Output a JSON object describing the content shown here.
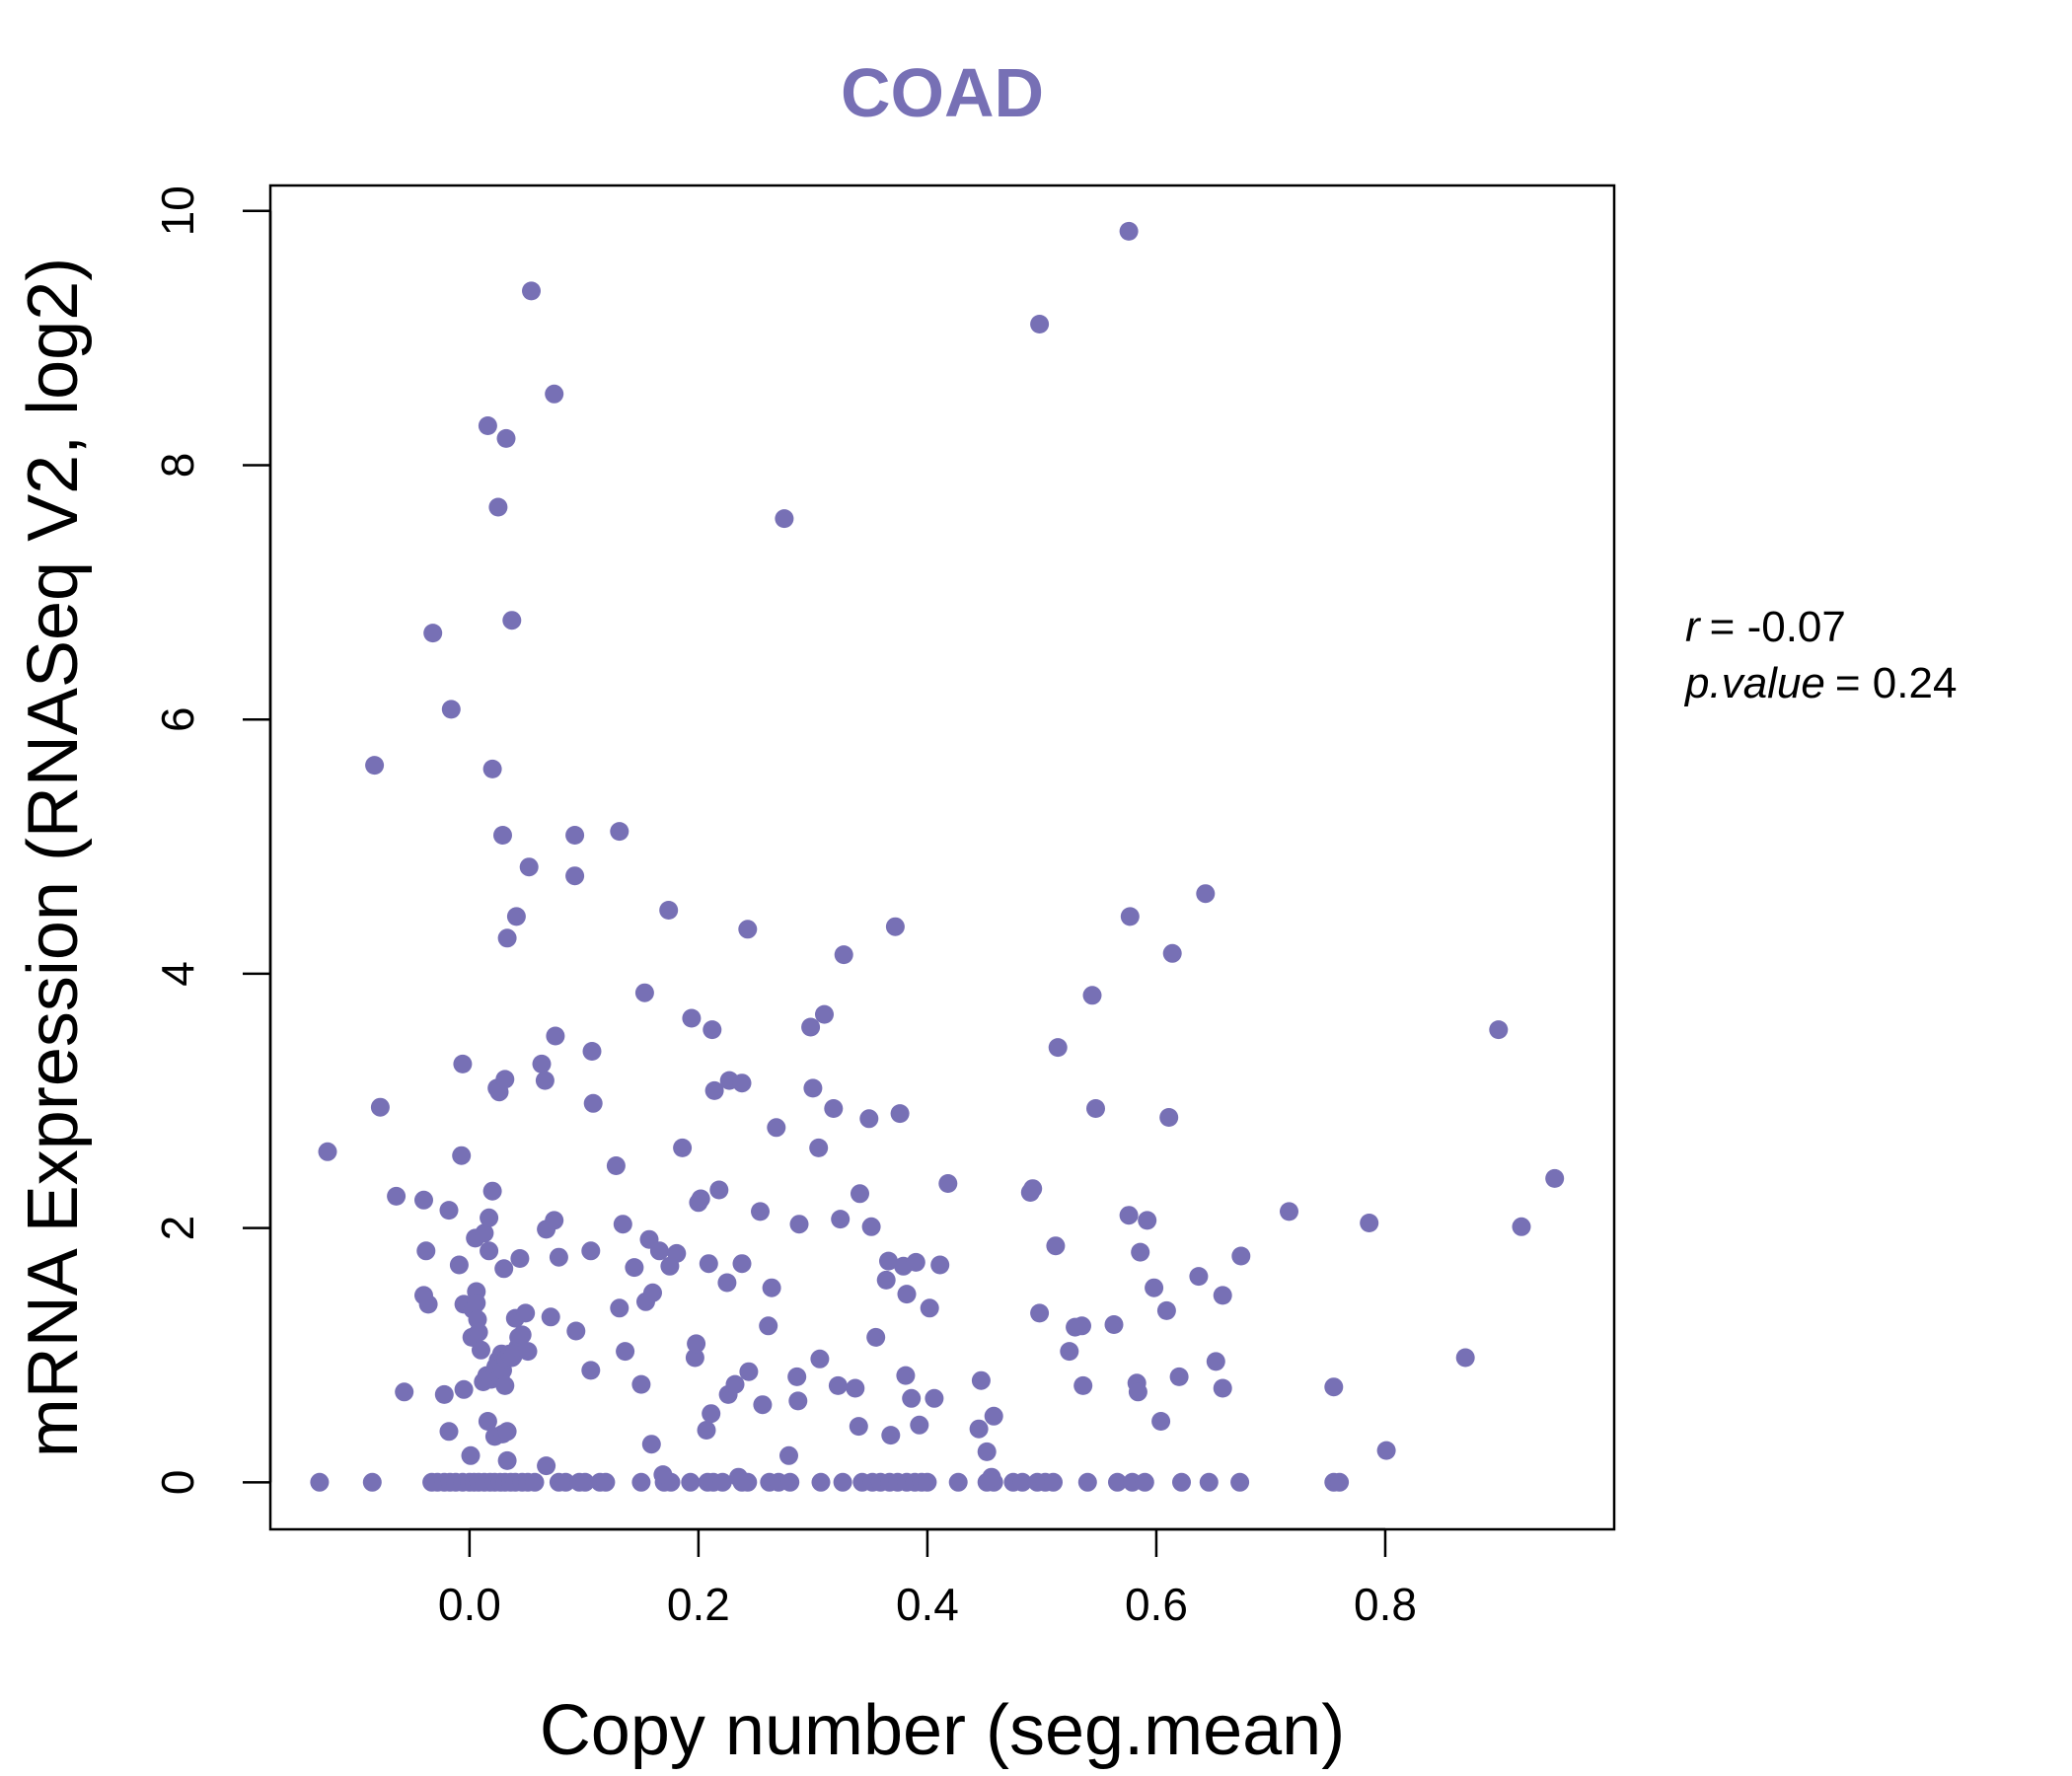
{
  "chart_data": {
    "type": "scatter",
    "title": "COAD",
    "xlabel": "Copy number (seg.mean)",
    "ylabel": "mRNA Expression (RNASeq V2, log2)",
    "xlim": [
      -0.174,
      1.0
    ],
    "ylim": [
      -0.37,
      10.2
    ],
    "xticks": [
      0.0,
      0.2,
      0.4,
      0.6,
      0.8
    ],
    "xtick_labels": [
      "0.0",
      "0.2",
      "0.4",
      "0.6",
      "0.8"
    ],
    "yticks": [
      0,
      2,
      4,
      6,
      8,
      10
    ],
    "ytick_labels": [
      "0",
      "2",
      "4",
      "6",
      "8",
      "10"
    ],
    "grid": false,
    "point_color": "#7770B5",
    "stats": {
      "r_label": "r",
      "r_value": "= -0.07",
      "p_label": "p.value",
      "p_value": "= 0.24"
    },
    "points": [
      [
        -0.131,
        0
      ],
      [
        -0.085,
        0
      ],
      [
        -0.033,
        0
      ],
      [
        -0.028,
        0
      ],
      [
        -0.022,
        0
      ],
      [
        -0.017,
        0
      ],
      [
        -0.012,
        0
      ],
      [
        -0.006,
        0
      ],
      [
        0.0,
        0
      ],
      [
        0.004,
        0
      ],
      [
        0.008,
        0
      ],
      [
        0.013,
        0
      ],
      [
        0.018,
        0
      ],
      [
        0.022,
        0
      ],
      [
        0.027,
        0
      ],
      [
        0.031,
        0
      ],
      [
        0.036,
        0
      ],
      [
        0.04,
        0
      ],
      [
        0.046,
        0
      ],
      [
        0.051,
        0
      ],
      [
        0.057,
        0
      ],
      [
        0.078,
        0
      ],
      [
        0.084,
        0
      ],
      [
        0.096,
        0
      ],
      [
        0.101,
        0
      ],
      [
        0.114,
        0
      ],
      [
        0.119,
        0
      ],
      [
        0.15,
        0
      ],
      [
        0.17,
        0
      ],
      [
        0.176,
        0
      ],
      [
        0.193,
        0
      ],
      [
        0.208,
        0
      ],
      [
        0.213,
        0
      ],
      [
        0.221,
        0
      ],
      [
        0.238,
        0
      ],
      [
        0.243,
        0
      ],
      [
        0.262,
        0
      ],
      [
        0.27,
        0
      ],
      [
        0.28,
        0
      ],
      [
        0.307,
        0
      ],
      [
        0.326,
        0
      ],
      [
        0.343,
        0
      ],
      [
        0.352,
        0
      ],
      [
        0.359,
        0
      ],
      [
        0.367,
        0
      ],
      [
        0.374,
        0
      ],
      [
        0.382,
        0
      ],
      [
        0.389,
        0
      ],
      [
        0.395,
        0
      ],
      [
        0.4,
        0
      ],
      [
        0.427,
        0
      ],
      [
        0.452,
        0
      ],
      [
        0.458,
        0
      ],
      [
        0.475,
        0
      ],
      [
        0.483,
        0
      ],
      [
        0.496,
        0
      ],
      [
        0.503,
        0
      ],
      [
        0.51,
        0
      ],
      [
        0.54,
        0
      ],
      [
        0.566,
        0
      ],
      [
        0.579,
        0
      ],
      [
        0.59,
        0
      ],
      [
        0.622,
        0
      ],
      [
        0.646,
        0
      ],
      [
        0.673,
        0
      ],
      [
        0.755,
        0
      ],
      [
        0.76,
        0
      ],
      [
        -0.124,
        2.6
      ],
      [
        -0.078,
        2.95
      ],
      [
        -0.064,
        2.25
      ],
      [
        -0.04,
        2.22
      ],
      [
        -0.038,
        1.82
      ],
      [
        -0.04,
        1.47
      ],
      [
        -0.036,
        1.4
      ],
      [
        -0.057,
        0.71
      ],
      [
        -0.022,
        0.69
      ],
      [
        -0.018,
        2.14
      ],
      [
        -0.018,
        0.4
      ],
      [
        -0.009,
        1.71
      ],
      [
        -0.007,
        2.57
      ],
      [
        -0.006,
        3.29
      ],
      [
        -0.005,
        1.4
      ],
      [
        -0.005,
        0.73
      ],
      [
        0.001,
        0.21
      ],
      [
        0.002,
        1.14
      ],
      [
        0.003,
        1.36
      ],
      [
        0.005,
        1.92
      ],
      [
        0.006,
        1.5
      ],
      [
        0.006,
        1.41
      ],
      [
        0.007,
        1.28
      ],
      [
        0.008,
        1.18
      ],
      [
        0.01,
        1.04
      ],
      [
        0.012,
        0.79
      ],
      [
        0.013,
        1.96
      ],
      [
        0.015,
        0.84
      ],
      [
        0.016,
        0.48
      ],
      [
        0.017,
        2.08
      ],
      [
        0.017,
        1.82
      ],
      [
        0.019,
        0.81
      ],
      [
        0.02,
        2.29
      ],
      [
        0.022,
        0.36
      ],
      [
        0.023,
        0.91
      ],
      [
        0.024,
        3.1
      ],
      [
        0.025,
        0.96
      ],
      [
        0.026,
        3.07
      ],
      [
        0.027,
        0.83
      ],
      [
        0.028,
        1.01
      ],
      [
        0.029,
        0.88
      ],
      [
        0.029,
        0.38
      ],
      [
        0.03,
        1.68
      ],
      [
        0.031,
        3.17
      ],
      [
        0.031,
        0.76
      ],
      [
        0.032,
        0.97
      ],
      [
        0.033,
        0.4
      ],
      [
        0.033,
        0.17
      ],
      [
        0.035,
        1.01
      ],
      [
        0.037,
        0.98
      ],
      [
        0.038,
        0.99
      ],
      [
        0.04,
        1.29
      ],
      [
        0.042,
        1.06
      ],
      [
        0.043,
        1.14
      ],
      [
        0.044,
        1.76
      ],
      [
        0.046,
        1.16
      ],
      [
        0.049,
        1.33
      ],
      [
        0.051,
        1.03
      ],
      [
        0.063,
        3.29
      ],
      [
        0.066,
        3.16
      ],
      [
        0.067,
        1.99
      ],
      [
        0.067,
        0.13
      ],
      [
        0.071,
        1.3
      ],
      [
        0.074,
        2.06
      ],
      [
        0.075,
        3.51
      ],
      [
        0.078,
        1.77
      ],
      [
        0.093,
        1.19
      ],
      [
        0.106,
        0.88
      ],
      [
        0.106,
        1.82
      ],
      [
        0.107,
        3.39
      ],
      [
        0.108,
        2.98
      ],
      [
        0.128,
        2.49
      ],
      [
        0.131,
        1.37
      ],
      [
        0.134,
        2.03
      ],
      [
        0.136,
        1.03
      ],
      [
        0.144,
        1.69
      ],
      [
        0.15,
        0.77
      ],
      [
        0.154,
        1.42
      ],
      [
        0.157,
        1.91
      ],
      [
        0.159,
        0.3
      ],
      [
        0.16,
        1.49
      ],
      [
        0.166,
        1.82
      ],
      [
        0.169,
        0.06
      ],
      [
        0.175,
        1.7
      ],
      [
        0.181,
        1.8
      ],
      [
        0.186,
        2.63
      ],
      [
        0.194,
        3.65
      ],
      [
        0.197,
        0.98
      ],
      [
        0.198,
        1.09
      ],
      [
        0.2,
        2.2
      ],
      [
        0.202,
        2.23
      ],
      [
        0.207,
        0.41
      ],
      [
        0.209,
        1.72
      ],
      [
        0.211,
        0.54
      ],
      [
        0.212,
        3.56
      ],
      [
        0.214,
        3.08
      ],
      [
        0.218,
        2.3
      ],
      [
        0.225,
        1.57
      ],
      [
        0.226,
        0.69
      ],
      [
        0.227,
        3.16
      ],
      [
        0.232,
        0.77
      ],
      [
        0.235,
        0.04
      ],
      [
        0.238,
        3.14
      ],
      [
        0.238,
        1.72
      ],
      [
        0.244,
        0.87
      ],
      [
        0.254,
        2.13
      ],
      [
        0.256,
        0.61
      ],
      [
        0.261,
        1.23
      ],
      [
        0.264,
        1.53
      ],
      [
        0.268,
        2.79
      ],
      [
        0.279,
        0.21
      ],
      [
        0.286,
        0.83
      ],
      [
        0.287,
        0.64
      ],
      [
        0.288,
        2.03
      ],
      [
        0.298,
        3.58
      ],
      [
        0.3,
        3.1
      ],
      [
        0.305,
        2.63
      ],
      [
        0.306,
        0.97
      ],
      [
        0.31,
        3.68
      ],
      [
        0.318,
        2.94
      ],
      [
        0.322,
        0.76
      ],
      [
        0.324,
        2.07
      ],
      [
        0.327,
        4.15
      ],
      [
        0.337,
        0.74
      ],
      [
        0.34,
        0.44
      ],
      [
        0.341,
        2.27
      ],
      [
        0.349,
        2.86
      ],
      [
        0.351,
        2.01
      ],
      [
        0.355,
        1.14
      ],
      [
        0.364,
        1.59
      ],
      [
        0.366,
        1.74
      ],
      [
        0.368,
        0.37
      ],
      [
        0.372,
        4.37
      ],
      [
        0.376,
        2.9
      ],
      [
        0.379,
        1.7
      ],
      [
        0.381,
        0.84
      ],
      [
        0.382,
        1.48
      ],
      [
        0.386,
        0.66
      ],
      [
        0.39,
        1.73
      ],
      [
        0.393,
        0.45
      ],
      [
        0.402,
        1.37
      ],
      [
        0.406,
        0.66
      ],
      [
        0.411,
        1.71
      ],
      [
        0.418,
        2.35
      ],
      [
        0.445,
        0.42
      ],
      [
        0.447,
        0.8
      ],
      [
        0.452,
        0.24
      ],
      [
        0.456,
        0.04
      ],
      [
        0.458,
        0.52
      ],
      [
        0.49,
        2.28
      ],
      [
        0.492,
        2.31
      ],
      [
        0.498,
        1.33
      ],
      [
        0.512,
        1.86
      ],
      [
        0.514,
        3.42
      ],
      [
        0.524,
        1.03
      ],
      [
        0.529,
        1.22
      ],
      [
        0.535,
        1.23
      ],
      [
        0.536,
        0.76
      ],
      [
        0.544,
        3.83
      ],
      [
        0.547,
        2.94
      ],
      [
        0.563,
        1.24
      ],
      [
        0.576,
        2.1
      ],
      [
        0.577,
        4.45
      ],
      [
        0.583,
        0.78
      ],
      [
        0.584,
        0.71
      ],
      [
        0.586,
        1.81
      ],
      [
        0.592,
        2.06
      ],
      [
        0.598,
        1.53
      ],
      [
        0.604,
        0.48
      ],
      [
        0.609,
        1.35
      ],
      [
        0.611,
        2.87
      ],
      [
        0.614,
        4.16
      ],
      [
        0.62,
        0.83
      ],
      [
        0.637,
        1.62
      ],
      [
        0.643,
        4.63
      ],
      [
        0.652,
        0.95
      ],
      [
        0.658,
        1.47
      ],
      [
        0.658,
        0.74
      ],
      [
        0.674,
        1.78
      ],
      [
        0.716,
        2.13
      ],
      [
        0.755,
        0.75
      ],
      [
        0.786,
        2.04
      ],
      [
        0.801,
        0.25
      ],
      [
        0.87,
        0.98
      ],
      [
        0.899,
        3.56
      ],
      [
        0.919,
        2.01
      ],
      [
        0.948,
        2.39
      ],
      [
        0.054,
        9.37
      ],
      [
        0.074,
        8.56
      ],
      [
        0.016,
        8.31
      ],
      [
        0.032,
        8.21
      ],
      [
        0.025,
        7.67
      ],
      [
        0.037,
        6.78
      ],
      [
        -0.032,
        6.68
      ],
      [
        -0.016,
        6.08
      ],
      [
        -0.083,
        5.64
      ],
      [
        0.02,
        5.61
      ],
      [
        0.029,
        5.09
      ],
      [
        0.052,
        4.84
      ],
      [
        0.041,
        4.45
      ],
      [
        0.033,
        4.28
      ],
      [
        0.092,
        5.09
      ],
      [
        0.092,
        4.77
      ],
      [
        0.131,
        5.12
      ],
      [
        0.174,
        4.5
      ],
      [
        0.153,
        3.85
      ],
      [
        0.243,
        4.35
      ],
      [
        0.275,
        7.58
      ],
      [
        0.498,
        9.11
      ],
      [
        0.576,
        9.84
      ]
    ]
  }
}
